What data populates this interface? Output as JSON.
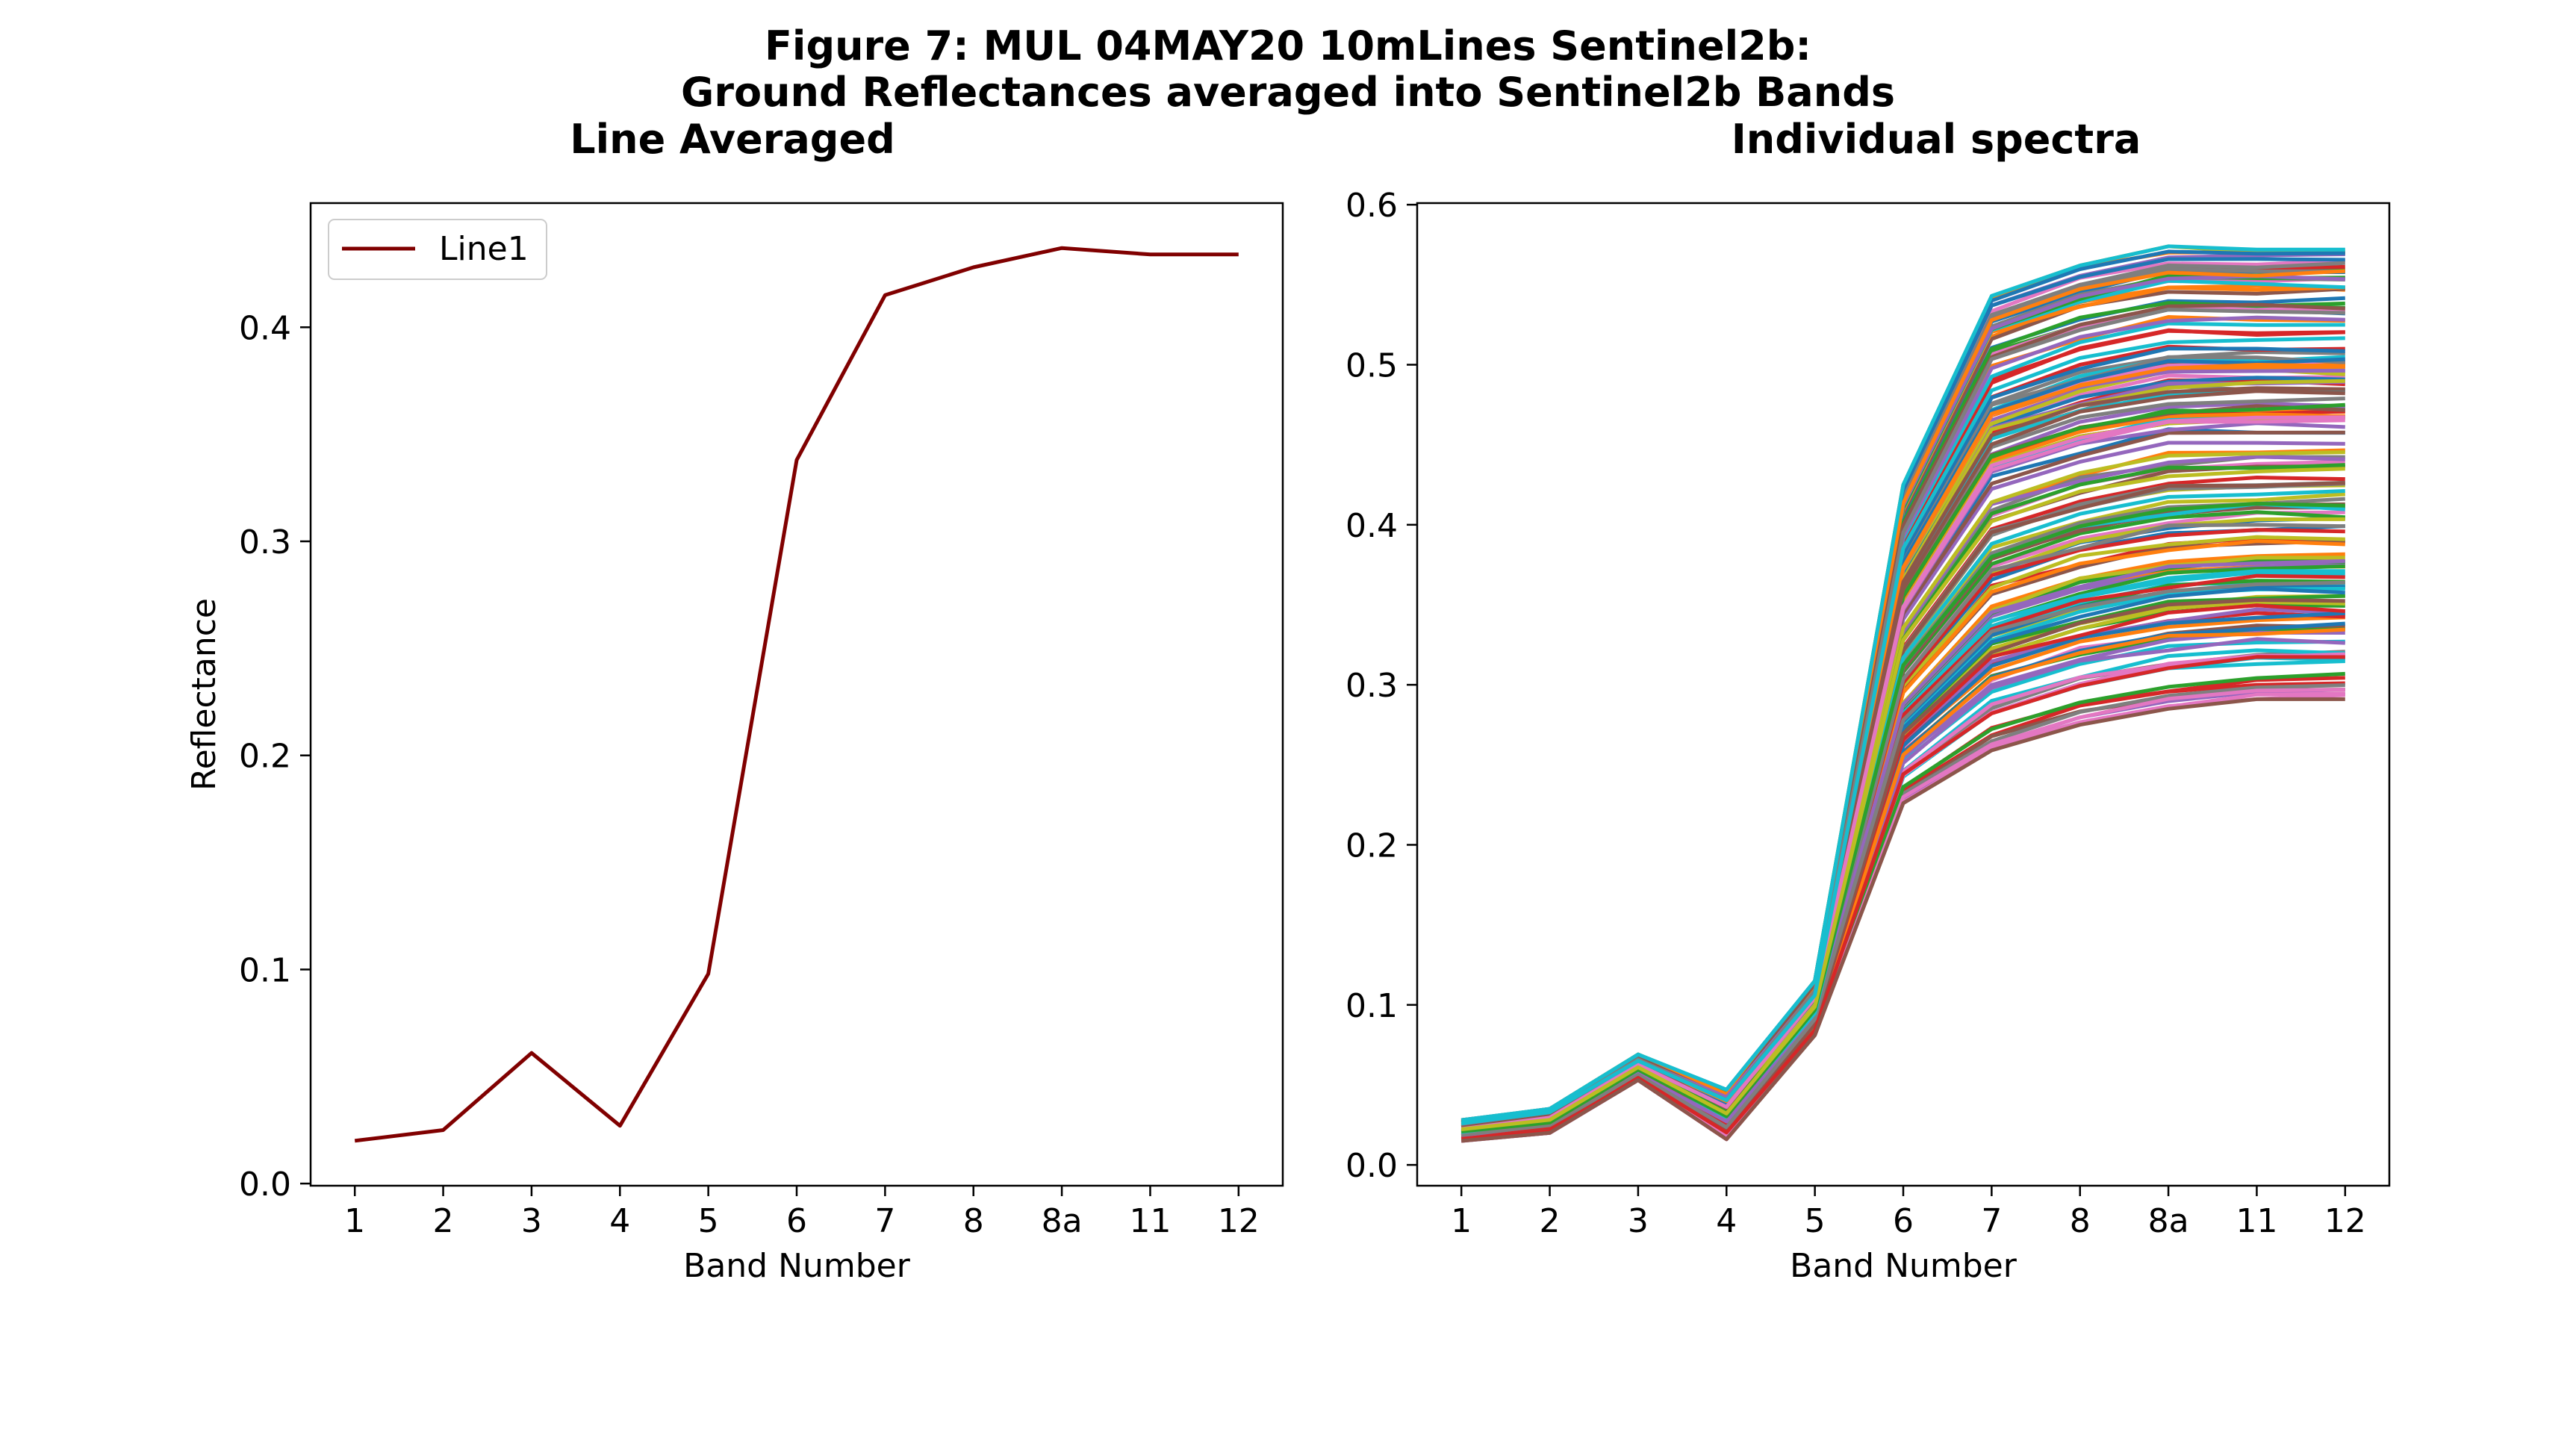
{
  "figure": {
    "title_line1": "Figure 7: MUL 04MAY20 10mLines Sentinel2b:",
    "title_line2": "Ground Reflectances averaged into Sentinel2b Bands"
  },
  "chart_data": [
    {
      "type": "line",
      "title": "Line Averaged",
      "xlabel": "Band Number",
      "ylabel": "Reflectance",
      "categories": [
        "1",
        "2",
        "3",
        "4",
        "5",
        "6",
        "7",
        "8",
        "8a",
        "11",
        "12"
      ],
      "ylim": [
        -0.001,
        0.458
      ],
      "yticks": [
        "0.0",
        "0.1",
        "0.2",
        "0.3",
        "0.4"
      ],
      "legend": "top-left",
      "grid": false,
      "series": [
        {
          "name": "Line1",
          "color": "#800000",
          "values": [
            0.02,
            0.025,
            0.061,
            0.027,
            0.098,
            0.338,
            0.415,
            0.428,
            0.437,
            0.434,
            0.434
          ]
        }
      ]
    },
    {
      "type": "line",
      "title": "Individual spectra",
      "xlabel": "Band Number",
      "ylabel": "",
      "categories": [
        "1",
        "2",
        "3",
        "4",
        "5",
        "6",
        "7",
        "8",
        "8a",
        "11",
        "12"
      ],
      "ylim": [
        -0.013,
        0.601
      ],
      "yticks": [
        "0.0",
        "0.1",
        "0.2",
        "0.3",
        "0.4",
        "0.5",
        "0.6"
      ],
      "grid": false,
      "palette": [
        "#1f77b4",
        "#ff7f0e",
        "#2ca02c",
        "#d62728",
        "#9467bd",
        "#8c564b",
        "#e377c2",
        "#7f7f7f",
        "#bcbd22",
        "#17becf"
      ],
      "series_count": 160,
      "spectrum_envelope": {
        "low": [
          0.015,
          0.02,
          0.053,
          0.016,
          0.081,
          0.226,
          0.259,
          0.275,
          0.285,
          0.291,
          0.291
        ],
        "high": [
          0.028,
          0.035,
          0.069,
          0.047,
          0.115,
          0.425,
          0.543,
          0.562,
          0.574,
          0.572,
          0.572
        ]
      }
    }
  ]
}
